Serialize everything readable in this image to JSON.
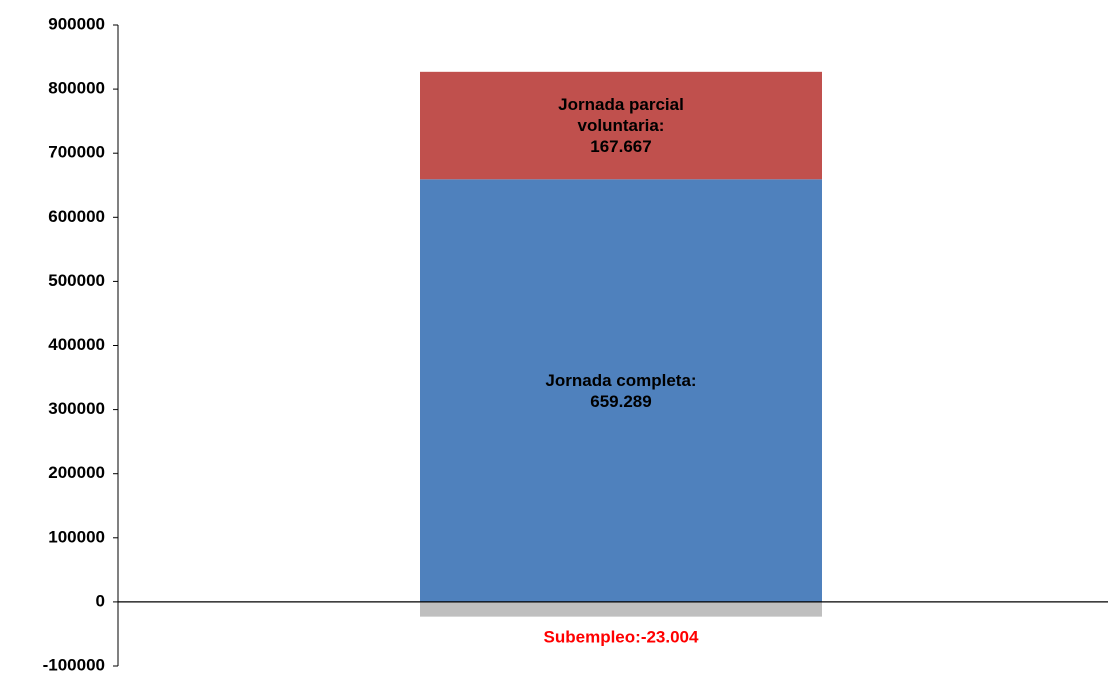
{
  "chart_data": {
    "type": "stacked_bar",
    "categories": [
      null
    ],
    "series": [
      {
        "name": "Jornada completa:",
        "color": "#4f81bd",
        "values": [
          659289
        ],
        "value_labels": [
          "659.289"
        ],
        "label_color": "#000000"
      },
      {
        "name": "Jornada parcial voluntaria:",
        "color": "#c0504d",
        "values": [
          167667
        ],
        "value_labels": [
          "167.667"
        ],
        "label_color": "#000000"
      },
      {
        "name": "Subempleo:",
        "color": "#bfbfbf",
        "values": [
          -23004
        ],
        "value_labels": [
          "-23.004"
        ],
        "label_color": "#ff0000"
      }
    ],
    "ylim": [
      -100000,
      900000
    ],
    "yticks": [
      -100000,
      0,
      100000,
      200000,
      300000,
      400000,
      500000,
      600000,
      700000,
      800000,
      900000
    ],
    "grid": false
  }
}
